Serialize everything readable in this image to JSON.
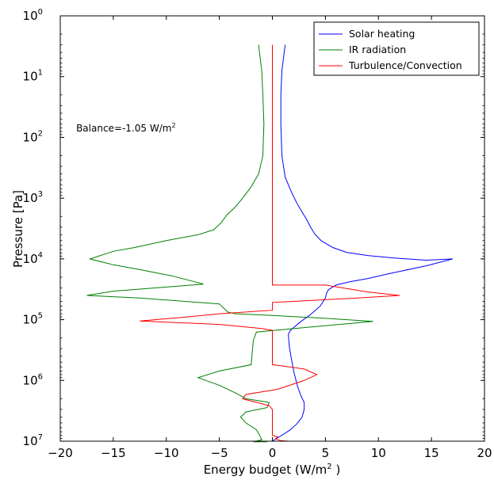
{
  "chart_data": {
    "type": "line",
    "xlabel_main": "Energy budget (W/m",
    "xlabel_sup": "2",
    "xlabel_end": " )",
    "ylabel": "Pressure [Pa]",
    "xlim": [
      -20,
      20
    ],
    "ylim": [
      1,
      10000000
    ],
    "y_scale": "log",
    "y_inverted": true,
    "grid": false,
    "legend_position": "top-right",
    "x_ticks": [
      -20,
      -15,
      -10,
      -5,
      0,
      5,
      10,
      15,
      20
    ],
    "x_tick_labels": [
      "−20",
      "−15",
      "−10",
      "−5",
      "0",
      "5",
      "10",
      "15",
      "20"
    ],
    "y_ticks": [
      {
        "value": 1,
        "base": "10",
        "exp": "0"
      },
      {
        "value": 10,
        "base": "10",
        "exp": "1"
      },
      {
        "value": 100,
        "base": "10",
        "exp": "2"
      },
      {
        "value": 1000,
        "base": "10",
        "exp": "3"
      },
      {
        "value": 10000,
        "base": "10",
        "exp": "4"
      },
      {
        "value": 100000,
        "base": "10",
        "exp": "5"
      },
      {
        "value": 1000000,
        "base": "10",
        "exp": "6"
      },
      {
        "value": 10000000,
        "base": "10",
        "exp": "7"
      }
    ],
    "annotation": {
      "text": "Balance=-1.05 W/m",
      "sup": "2",
      "x": -18.5,
      "y": 80
    },
    "series": [
      {
        "name": "Solar heating",
        "color": "#0000ff",
        "points": [
          [
            1.2,
            3
          ],
          [
            0.9,
            8
          ],
          [
            0.8,
            20
          ],
          [
            0.8,
            60
          ],
          [
            0.9,
            200
          ],
          [
            1.2,
            450
          ],
          [
            1.8,
            800
          ],
          [
            2.3,
            1200
          ],
          [
            2.8,
            1700
          ],
          [
            3.2,
            2200
          ],
          [
            3.6,
            3000
          ],
          [
            4.0,
            3900
          ],
          [
            4.6,
            5000
          ],
          [
            5.7,
            6500
          ],
          [
            7.0,
            7800
          ],
          [
            9.0,
            8800
          ],
          [
            11.5,
            9700
          ],
          [
            14.5,
            10500
          ],
          [
            17.0,
            10000
          ],
          [
            14.5,
            13000
          ],
          [
            11.0,
            17500
          ],
          [
            9.0,
            21000
          ],
          [
            7.2,
            24000
          ],
          [
            6.0,
            27000
          ],
          [
            5.3,
            32000
          ],
          [
            5.1,
            37000
          ],
          [
            5.0,
            44000
          ],
          [
            4.5,
            60000
          ],
          [
            3.5,
            85000
          ],
          [
            2.6,
            110000
          ],
          [
            2.0,
            135000
          ],
          [
            1.7,
            150000
          ],
          [
            1.5,
            175000
          ],
          [
            1.6,
            280000
          ],
          [
            1.8,
            450000
          ],
          [
            2.0,
            700000
          ],
          [
            2.2,
            950000
          ],
          [
            2.4,
            1300000
          ],
          [
            2.7,
            1800000
          ],
          [
            3.0,
            2300000
          ],
          [
            3.0,
            3000000
          ],
          [
            2.8,
            4000000
          ],
          [
            2.3,
            5200000
          ],
          [
            1.7,
            6500000
          ],
          [
            1.0,
            7800000
          ],
          [
            0.4,
            9000000
          ],
          [
            0.0,
            10000000
          ]
        ]
      },
      {
        "name": "IR radiation",
        "color": "#008000",
        "points": [
          [
            -1.3,
            3
          ],
          [
            -1.0,
            8
          ],
          [
            -0.9,
            20
          ],
          [
            -0.8,
            60
          ],
          [
            -0.9,
            200
          ],
          [
            -1.3,
            400
          ],
          [
            -2.0,
            650
          ],
          [
            -2.8,
            1000
          ],
          [
            -3.5,
            1400
          ],
          [
            -4.3,
            1900
          ],
          [
            -4.8,
            2500
          ],
          [
            -5.5,
            3300
          ],
          [
            -7.0,
            4000
          ],
          [
            -10.0,
            5000
          ],
          [
            -13.0,
            6500
          ],
          [
            -15.0,
            7500
          ],
          [
            -17.2,
            10000
          ],
          [
            -15.0,
            12500
          ],
          [
            -12.5,
            15000
          ],
          [
            -9.5,
            19000
          ],
          [
            -6.5,
            26000
          ],
          [
            -15.0,
            34000
          ],
          [
            -17.5,
            40000
          ],
          [
            -12.5,
            44000
          ],
          [
            -5.0,
            55000
          ],
          [
            -4.2,
            75000
          ],
          [
            -3.5,
            80000
          ],
          [
            0.0,
            85000
          ],
          [
            5.0,
            95000
          ],
          [
            9.5,
            107000
          ],
          [
            3.0,
            135000
          ],
          [
            -1.5,
            160000
          ],
          [
            -1.8,
            220000
          ],
          [
            -2.0,
            550000
          ],
          [
            -5.0,
            700000
          ],
          [
            -7.0,
            900000
          ],
          [
            -5.0,
            1200000
          ],
          [
            -3.5,
            1600000
          ],
          [
            -2.5,
            2000000
          ],
          [
            -0.3,
            2300000
          ],
          [
            -0.5,
            2800000
          ],
          [
            -2.5,
            3300000
          ],
          [
            -3.0,
            4000000
          ],
          [
            -2.5,
            5000000
          ],
          [
            -1.5,
            6500000
          ],
          [
            -1.2,
            8000000
          ],
          [
            -1.0,
            9500000
          ],
          [
            -1.8,
            10200000
          ],
          [
            -0.5,
            10200000
          ]
        ]
      },
      {
        "name": "Turbulence/Convection",
        "color": "#ff0000",
        "points": [
          [
            0.0,
            3
          ],
          [
            0.0,
            27000
          ],
          [
            5.0,
            27000
          ],
          [
            9.0,
            35000
          ],
          [
            12.0,
            40000
          ],
          [
            8.0,
            44000
          ],
          [
            2.0,
            50000
          ],
          [
            0.0,
            52000
          ],
          [
            0.0,
            70000
          ],
          [
            -5.0,
            80000
          ],
          [
            -8.0,
            90000
          ],
          [
            -12.5,
            105000
          ],
          [
            -5.0,
            120000
          ],
          [
            -1.0,
            140000
          ],
          [
            0.0,
            150000
          ],
          [
            0.0,
            550000
          ],
          [
            1.0,
            580000
          ],
          [
            3.0,
            650000
          ],
          [
            4.2,
            800000
          ],
          [
            3.0,
            1000000
          ],
          [
            0.5,
            1400000
          ],
          [
            -2.5,
            1700000
          ],
          [
            -2.8,
            2000000
          ],
          [
            -1.5,
            2300000
          ],
          [
            -0.3,
            2600000
          ],
          [
            0.0,
            3000000
          ],
          [
            0.0,
            8000000
          ],
          [
            0.5,
            8500000
          ],
          [
            0.3,
            9200000
          ],
          [
            0.8,
            9800000
          ],
          [
            1.5,
            10000000
          ]
        ]
      }
    ]
  }
}
